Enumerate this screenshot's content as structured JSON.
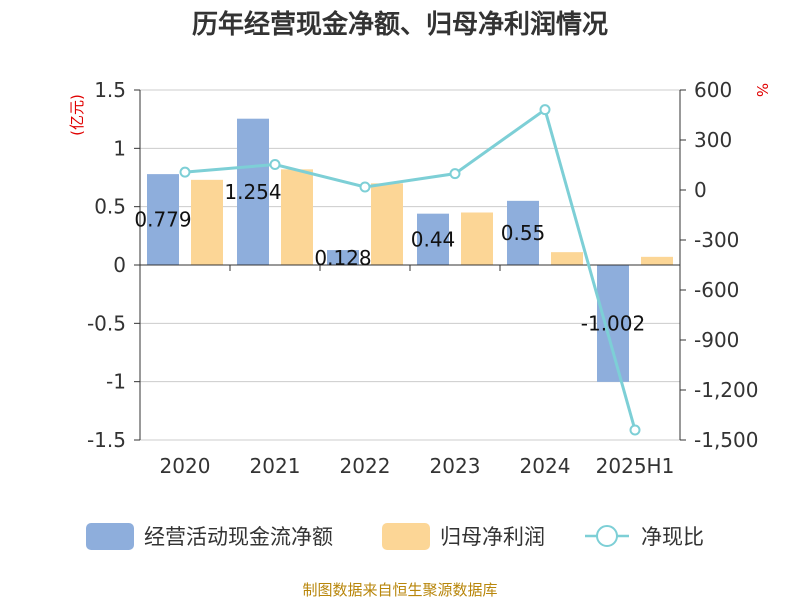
{
  "chart_data": {
    "type": "bar",
    "title": "历年经营现金净额、归母净利润情况",
    "categories": [
      "2020",
      "2021",
      "2022",
      "2023",
      "2024",
      "2025H1"
    ],
    "series": [
      {
        "name": "经营活动现金流净额",
        "kind": "bar",
        "axis": "left",
        "color": "#8eaedc",
        "values": [
          0.779,
          1.254,
          0.128,
          0.44,
          0.55,
          -1.002
        ],
        "labels": [
          "0.779",
          "1.254",
          "0.128",
          "0.44",
          "0.55",
          "-1.002"
        ]
      },
      {
        "name": "归母净利润",
        "kind": "bar",
        "axis": "left",
        "color": "#fcd696",
        "values": [
          0.73,
          0.82,
          0.7,
          0.45,
          0.11,
          0.07
        ]
      },
      {
        "name": "净现比",
        "kind": "line",
        "axis": "right",
        "color": "#7dcfd6",
        "values": [
          107,
          153,
          18,
          98,
          482,
          -1440
        ]
      }
    ],
    "y_left": {
      "unit": "(亿元)",
      "min": -1.5,
      "max": 1.5,
      "ticks": [
        "1.5",
        "1",
        "0.5",
        "0",
        "-0.5",
        "-1",
        "-1.5"
      ]
    },
    "y_right": {
      "unit": "%",
      "min": -1500,
      "max": 600,
      "ticks": [
        "600",
        "300",
        "0",
        "-300",
        "-600",
        "-900",
        "-1,200",
        "-1,500"
      ]
    },
    "grid": true,
    "legend_position": "bottom",
    "source": "制图数据来自恒生聚源数据库"
  }
}
